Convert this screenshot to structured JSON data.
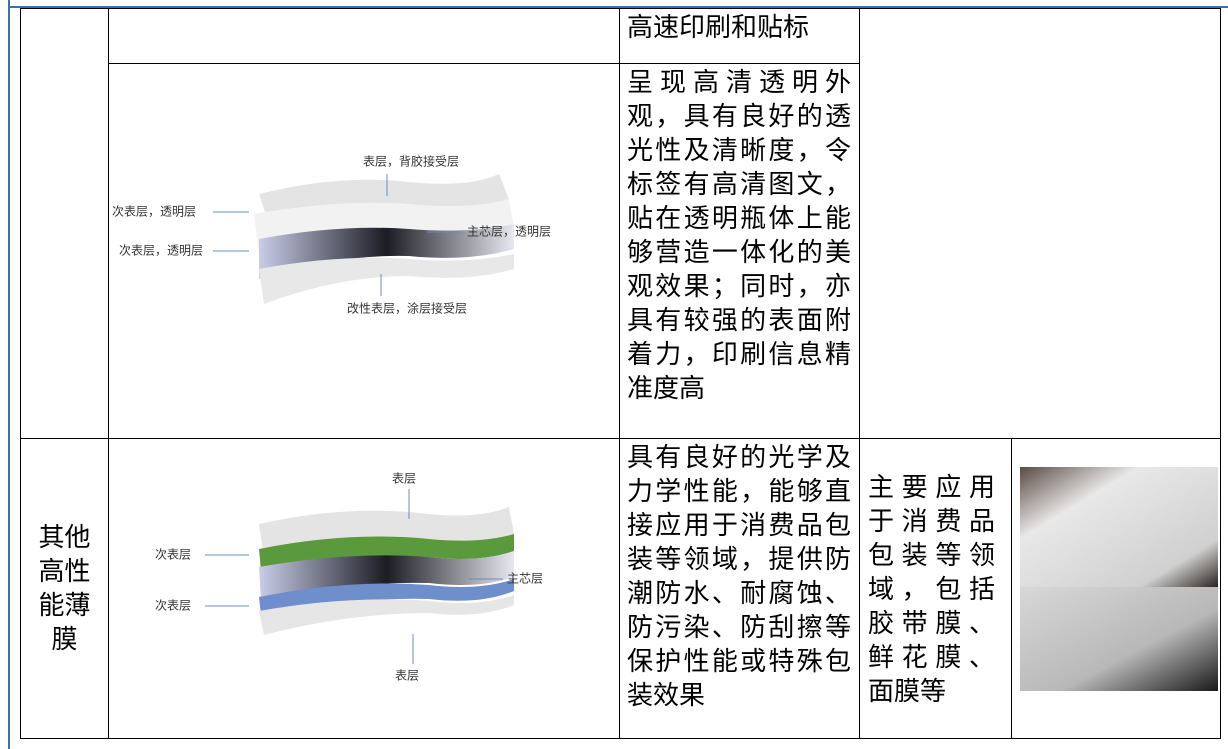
{
  "table": {
    "rows": [
      {
        "description": "高速印刷和贴标"
      },
      {
        "diagram_labels": [
          "表层，背胶接受层",
          "次表层，透明层",
          "主芯层，透明层",
          "次表层，透明层",
          "改性表层，涂层接受层"
        ],
        "description": "呈现高清透明外观，具有良好的透光性及清晰度，令标签有高清图文，贴在透明瓶体上能够营造一体化的美观效果；同时，亦具有较强的表面附着力，印刷信息精准度高"
      },
      {
        "category": "其他高性能薄膜",
        "diagram_labels": [
          "表层",
          "次表层",
          "主芯层",
          "次表层",
          "表层"
        ],
        "description": "具有良好的光学及力学性能，能够直接应用于消费品包装等领域，提供防潮防水、耐腐蚀、防污染、防刮擦等保护性能或特殊包装效果",
        "application": "主要应用于消费品包装等领域，包括胶带膜、鲜花膜、面膜等"
      }
    ]
  }
}
